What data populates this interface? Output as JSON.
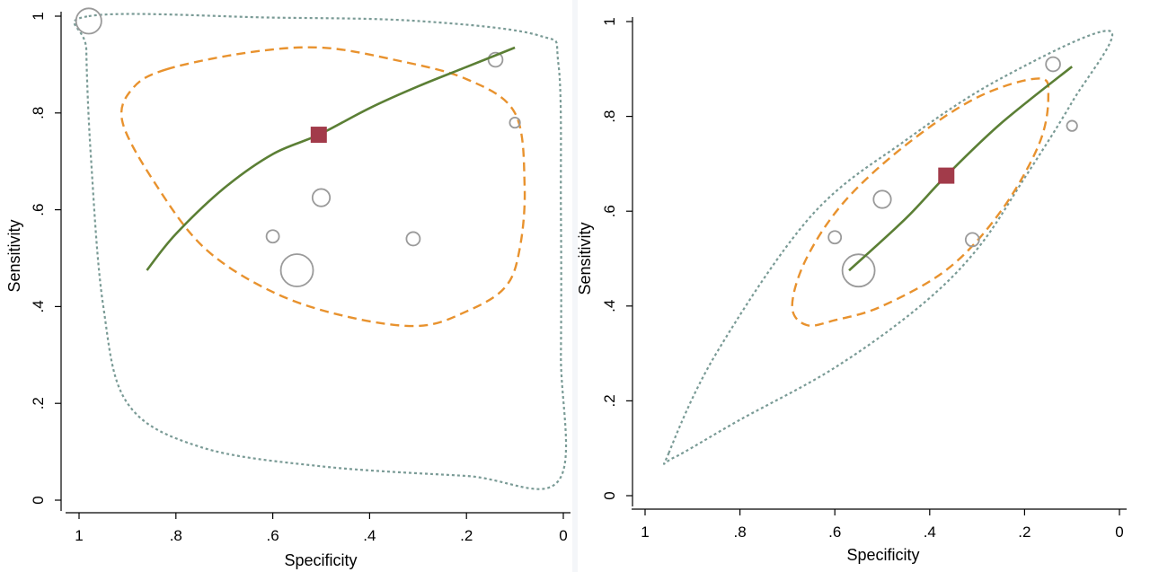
{
  "chart_data": [
    {
      "type": "scatter",
      "xlabel": "Specificity",
      "ylabel": "Sensitivity",
      "xlim": [
        1,
        0
      ],
      "ylim": [
        0,
        1
      ],
      "xticks": [
        "1",
        ".8",
        ".6",
        ".4",
        ".2",
        "0"
      ],
      "yticks": [
        "0",
        ".2",
        ".4",
        ".6",
        ".8",
        "1"
      ],
      "points": [
        {
          "x": 0.98,
          "y": 0.99,
          "size": 3.2
        },
        {
          "x": 0.14,
          "y": 0.91,
          "size": 1.8
        },
        {
          "x": 0.1,
          "y": 0.78,
          "size": 1.3
        },
        {
          "x": 0.5,
          "y": 0.625,
          "size": 2.2
        },
        {
          "x": 0.6,
          "y": 0.545,
          "size": 1.6
        },
        {
          "x": 0.31,
          "y": 0.54,
          "size": 1.7
        },
        {
          "x": 0.55,
          "y": 0.475,
          "size": 4.1
        }
      ],
      "summary_point": {
        "x": 0.505,
        "y": 0.755
      },
      "sroc_curve": [
        [
          0.86,
          0.475
        ],
        [
          0.8,
          0.55
        ],
        [
          0.7,
          0.645
        ],
        [
          0.6,
          0.715
        ],
        [
          0.505,
          0.755
        ],
        [
          0.4,
          0.81
        ],
        [
          0.3,
          0.855
        ],
        [
          0.2,
          0.895
        ],
        [
          0.1,
          0.935
        ]
      ],
      "confidence_region": [
        [
          0.82,
          0.89
        ],
        [
          0.65,
          0.925
        ],
        [
          0.5,
          0.935
        ],
        [
          0.35,
          0.91
        ],
        [
          0.2,
          0.87
        ],
        [
          0.1,
          0.8
        ],
        [
          0.08,
          0.65
        ],
        [
          0.09,
          0.52
        ],
        [
          0.12,
          0.44
        ],
        [
          0.2,
          0.39
        ],
        [
          0.3,
          0.36
        ],
        [
          0.45,
          0.38
        ],
        [
          0.6,
          0.43
        ],
        [
          0.74,
          0.52
        ],
        [
          0.84,
          0.65
        ],
        [
          0.91,
          0.78
        ],
        [
          0.89,
          0.85
        ]
      ],
      "prediction_region": [
        [
          0.98,
          1.0
        ],
        [
          0.6,
          0.997
        ],
        [
          0.3,
          0.99
        ],
        [
          0.05,
          0.96
        ],
        [
          0.01,
          0.9
        ],
        [
          0.005,
          0.6
        ],
        [
          0.005,
          0.3
        ],
        [
          0.01,
          0.04
        ],
        [
          0.2,
          0.05
        ],
        [
          0.5,
          0.07
        ],
        [
          0.75,
          0.11
        ],
        [
          0.9,
          0.2
        ],
        [
          0.95,
          0.4
        ],
        [
          0.975,
          0.7
        ],
        [
          0.985,
          0.93
        ]
      ],
      "colors": {
        "curve": "#5b7f35",
        "confidence": "#e8922e",
        "prediction": "#7a9b96",
        "summary": "#a23b4a",
        "points": "#9a9a9a"
      }
    },
    {
      "type": "scatter",
      "xlabel": "Specificity",
      "ylabel": "Sensitivity",
      "xlim": [
        1,
        0
      ],
      "ylim": [
        0,
        1
      ],
      "xticks": [
        "1",
        ".8",
        ".6",
        ".4",
        ".2",
        "0"
      ],
      "yticks": [
        "0",
        ".2",
        ".4",
        ".6",
        ".8",
        "1"
      ],
      "points": [
        {
          "x": 0.14,
          "y": 0.91,
          "size": 1.8
        },
        {
          "x": 0.1,
          "y": 0.78,
          "size": 1.3
        },
        {
          "x": 0.5,
          "y": 0.625,
          "size": 2.2
        },
        {
          "x": 0.6,
          "y": 0.545,
          "size": 1.6
        },
        {
          "x": 0.31,
          "y": 0.54,
          "size": 1.7
        },
        {
          "x": 0.55,
          "y": 0.475,
          "size": 4.1
        }
      ],
      "summary_point": {
        "x": 0.365,
        "y": 0.675
      },
      "sroc_curve": [
        [
          0.57,
          0.475
        ],
        [
          0.45,
          0.585
        ],
        [
          0.365,
          0.675
        ],
        [
          0.25,
          0.785
        ],
        [
          0.1,
          0.905
        ]
      ],
      "confidence_region": [
        [
          0.69,
          0.4
        ],
        [
          0.66,
          0.5
        ],
        [
          0.58,
          0.62
        ],
        [
          0.45,
          0.74
        ],
        [
          0.3,
          0.84
        ],
        [
          0.17,
          0.88
        ],
        [
          0.15,
          0.84
        ],
        [
          0.17,
          0.74
        ],
        [
          0.25,
          0.6
        ],
        [
          0.36,
          0.48
        ],
        [
          0.5,
          0.4
        ],
        [
          0.6,
          0.37
        ],
        [
          0.66,
          0.36
        ]
      ],
      "prediction_region": [
        [
          0.95,
          0.09
        ],
        [
          0.85,
          0.3
        ],
        [
          0.65,
          0.59
        ],
        [
          0.45,
          0.75
        ],
        [
          0.25,
          0.88
        ],
        [
          0.02,
          0.98
        ],
        [
          0.1,
          0.83
        ],
        [
          0.2,
          0.67
        ],
        [
          0.3,
          0.52
        ],
        [
          0.42,
          0.4
        ],
        [
          0.6,
          0.27
        ],
        [
          0.8,
          0.16
        ],
        [
          0.94,
          0.08
        ]
      ],
      "colors": {
        "curve": "#5b7f35",
        "confidence": "#e8922e",
        "prediction": "#7a9b96",
        "summary": "#a23b4a",
        "points": "#9a9a9a"
      }
    }
  ]
}
